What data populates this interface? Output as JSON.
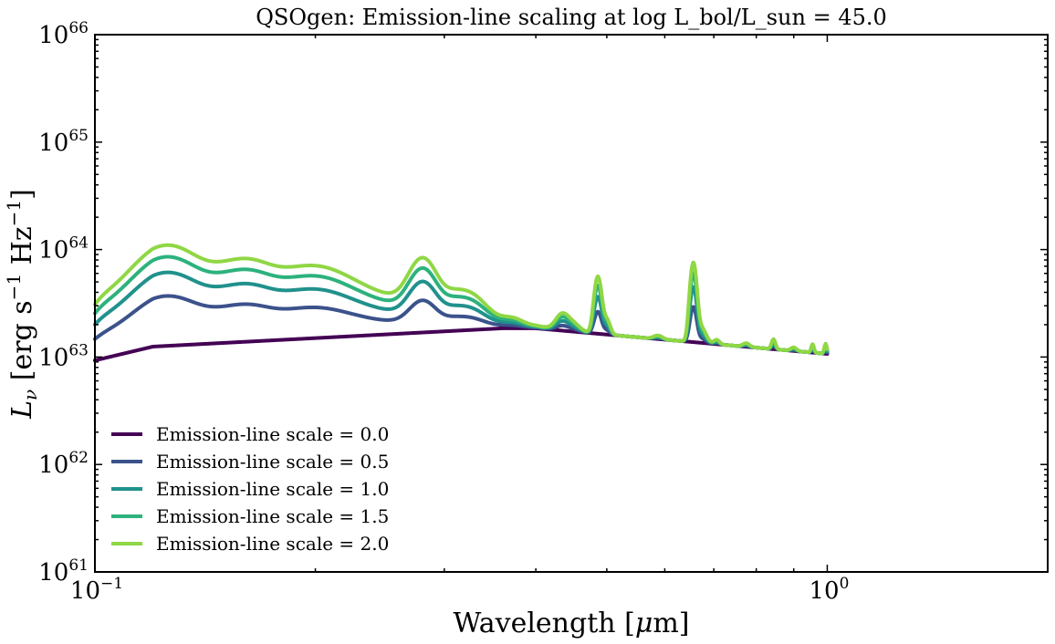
{
  "chart_data": {
    "type": "line",
    "title": "QSOgen: Emission-line scaling at log L_bol/L_sun = 45.0",
    "xlabel": {
      "main": "Wavelength [",
      "mu": "μ",
      "unit": "m]"
    },
    "ylabel": {
      "L": "L",
      "nu": "ν",
      "rest": " [erg s",
      "exp1": "−1",
      "hz": " Hz",
      "exp2": "−1",
      "close": "]"
    },
    "xscale": "log",
    "yscale": "log",
    "xlim": [
      0.1,
      2.0
    ],
    "ylim": [
      1e+61,
      1e+66
    ],
    "x_ticks": [
      {
        "value": 0.1,
        "base": "10",
        "exp": "−1"
      },
      {
        "value": 1.0,
        "base": "10",
        "exp": "0"
      }
    ],
    "y_ticks": [
      {
        "value": 1e+61,
        "base": "10",
        "exp": "61"
      },
      {
        "value": 1e+62,
        "base": "10",
        "exp": "62"
      },
      {
        "value": 1e+63,
        "base": "10",
        "exp": "63"
      },
      {
        "value": 1e+64,
        "base": "10",
        "exp": "64"
      },
      {
        "value": 1e+65,
        "base": "10",
        "exp": "65"
      },
      {
        "value": 1e+66,
        "base": "10",
        "exp": "66"
      }
    ],
    "legend_position": "lower-left",
    "grid": false,
    "continuum": {
      "x": [
        0.1,
        0.12,
        0.36,
        0.4,
        1.0
      ],
      "y": [
        9.3e+62,
        1.25e+63,
        1.85e+63,
        1.85e+63,
        1.07e+63
      ]
    },
    "emission_features": [
      {
        "x": 0.1005,
        "amp": 0.25,
        "width": 0.004
      },
      {
        "x": 0.103,
        "amp": 0.35,
        "width": 0.006
      },
      {
        "x": 0.1085,
        "amp": 0.12,
        "width": 0.006
      },
      {
        "x": 0.1216,
        "amp": 2.2,
        "width": 0.012
      },
      {
        "x": 0.124,
        "amp": 1.1,
        "width": 0.01
      },
      {
        "x": 0.1305,
        "amp": 0.25,
        "width": 0.008
      },
      {
        "x": 0.14,
        "amp": 0.55,
        "width": 0.01
      },
      {
        "x": 0.1549,
        "amp": 1.15,
        "width": 0.012
      },
      {
        "x": 0.164,
        "amp": 0.35,
        "width": 0.01
      },
      {
        "x": 0.175,
        "amp": 0.35,
        "width": 0.018
      },
      {
        "x": 0.1909,
        "amp": 0.95,
        "width": 0.03
      },
      {
        "x": 0.2,
        "amp": 0.35,
        "width": 0.015
      },
      {
        "x": 0.22,
        "amp": 0.22,
        "width": 0.02
      },
      {
        "x": 0.242,
        "amp": 0.4,
        "width": 0.07
      },
      {
        "x": 0.2798,
        "amp": 1.35,
        "width": 0.01
      },
      {
        "x": 0.295,
        "amp": 0.3,
        "width": 0.03
      },
      {
        "x": 0.315,
        "amp": 0.18,
        "width": 0.015
      },
      {
        "x": 0.33,
        "amp": 0.12,
        "width": 0.012
      },
      {
        "x": 0.3727,
        "amp": 0.05,
        "width": 0.01
      },
      {
        "x": 0.434,
        "amp": 0.18,
        "width": 0.008
      },
      {
        "x": 0.448,
        "amp": 0.1,
        "width": 0.01
      },
      {
        "x": 0.4861,
        "amp": 1.2,
        "width": 0.005
      },
      {
        "x": 0.4959,
        "amp": 0.06,
        "width": 0.005
      },
      {
        "x": 0.5007,
        "amp": 0.15,
        "width": 0.005
      },
      {
        "x": 0.5876,
        "amp": 0.04,
        "width": 0.008
      },
      {
        "x": 0.6563,
        "amp": 2.2,
        "width": 0.006
      },
      {
        "x": 0.672,
        "amp": 0.2,
        "width": 0.01
      },
      {
        "x": 0.7065,
        "amp": 0.05,
        "width": 0.006
      },
      {
        "x": 0.775,
        "amp": 0.04,
        "width": 0.008
      },
      {
        "x": 0.8446,
        "amp": 0.12,
        "width": 0.005
      },
      {
        "x": 0.9,
        "amp": 0.04,
        "width": 0.008
      },
      {
        "x": 0.955,
        "amp": 0.1,
        "width": 0.004
      },
      {
        "x": 0.995,
        "amp": 0.12,
        "width": 0.004
      }
    ],
    "series": [
      {
        "name": "Emission-line scale = 0.0",
        "scale": 0.0,
        "color": "#440154"
      },
      {
        "name": "Emission-line scale = 0.5",
        "scale": 0.5,
        "color": "#3b528b"
      },
      {
        "name": "Emission-line scale = 1.0",
        "scale": 1.0,
        "color": "#21918c"
      },
      {
        "name": "Emission-line scale = 1.5",
        "scale": 1.5,
        "color": "#2db27d"
      },
      {
        "name": "Emission-line scale = 2.0",
        "scale": 2.0,
        "color": "#8fd744"
      }
    ]
  }
}
